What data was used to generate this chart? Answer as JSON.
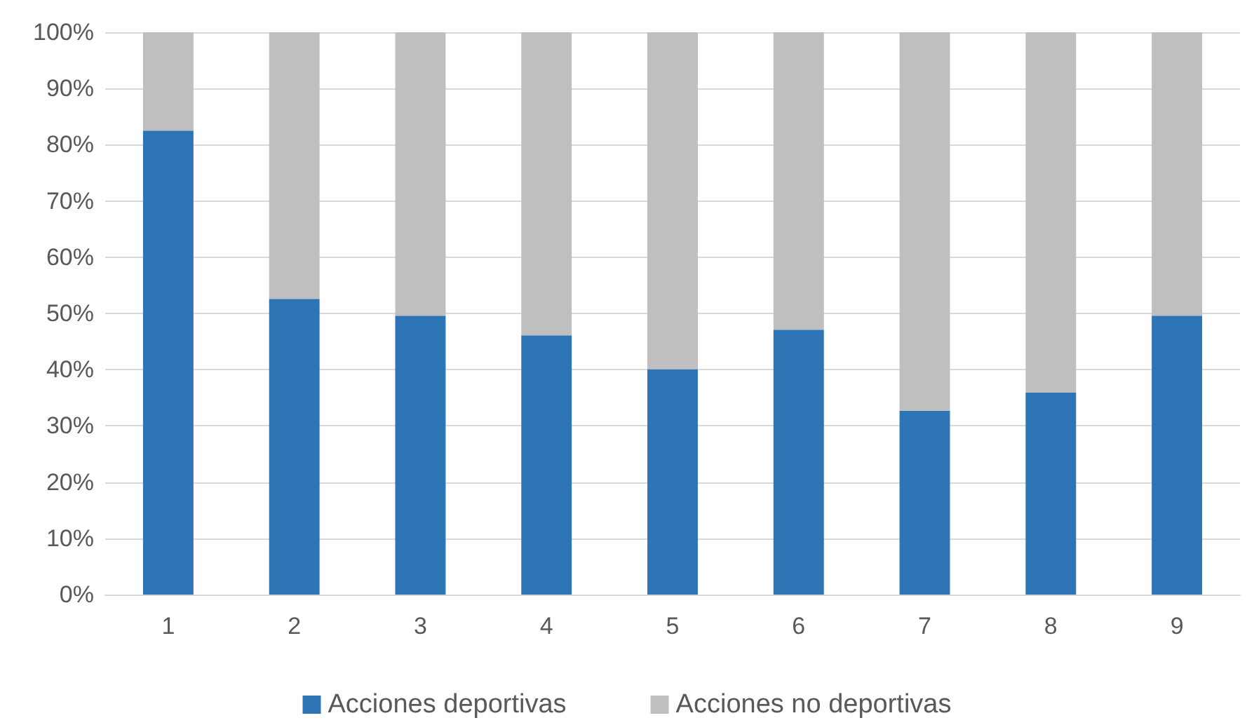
{
  "chart_data": {
    "type": "bar",
    "stacked": true,
    "categories": [
      "1",
      "2",
      "3",
      "4",
      "5",
      "6",
      "7",
      "8",
      "9"
    ],
    "series": [
      {
        "name": "Acciones deportivas",
        "color": "#2e75b6",
        "values": [
          82.5,
          52.6,
          49.6,
          46.1,
          40.1,
          47.1,
          32.7,
          35.9,
          49.6
        ]
      },
      {
        "name": "Acciones no deportivas",
        "color": "#bfbfbf",
        "values": [
          17.5,
          47.4,
          50.4,
          53.9,
          59.9,
          52.9,
          67.3,
          64.1,
          50.4
        ]
      }
    ],
    "ylim": [
      0,
      100
    ],
    "yticks": [
      {
        "value": 0,
        "label": "0%"
      },
      {
        "value": 10,
        "label": "10%"
      },
      {
        "value": 20,
        "label": "20%"
      },
      {
        "value": 30,
        "label": "30%"
      },
      {
        "value": 40,
        "label": "40%"
      },
      {
        "value": 50,
        "label": "50%"
      },
      {
        "value": 60,
        "label": "60%"
      },
      {
        "value": 70,
        "label": "70%"
      },
      {
        "value": 80,
        "label": "80%"
      },
      {
        "value": 90,
        "label": "90%"
      },
      {
        "value": 100,
        "label": "100%"
      }
    ],
    "grid": "y",
    "legend": "bottom"
  }
}
